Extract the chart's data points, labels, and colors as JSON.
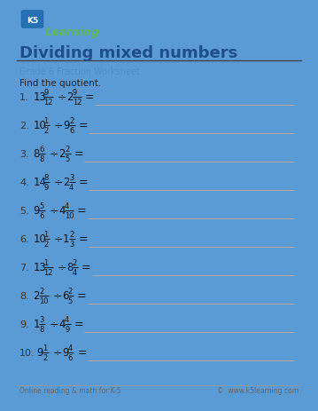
{
  "title": "Dividing mixed numbers",
  "subtitle": "Grade 6 Fraction Worksheet",
  "instruction": "Find the quotient.",
  "bg_color": "#5b9bd5",
  "paper_color": "#ffffff",
  "title_color": "#1f4e8c",
  "subtitle_color": "#4a90c4",
  "text_color": "#222222",
  "line_color": "#bbbbbb",
  "footer_left": "Online reading & math for K-5",
  "footer_right": "©  www.k5learning.com",
  "footer_color": "#666666",
  "problems": [
    {
      "num": "1.",
      "w1": "13",
      "n1": "9",
      "d1": "12",
      "w2": "2",
      "n2": "9",
      "d2": "12"
    },
    {
      "num": "2.",
      "w1": "10",
      "n1": "1",
      "d1": "2",
      "w2": "9",
      "n2": "2",
      "d2": "6"
    },
    {
      "num": "3.",
      "w1": "8",
      "n1": "6",
      "d1": "8",
      "w2": "2",
      "n2": "2",
      "d2": "5"
    },
    {
      "num": "4.",
      "w1": "14",
      "n1": "8",
      "d1": "9",
      "w2": "2",
      "n2": "3",
      "d2": "4"
    },
    {
      "num": "5.",
      "w1": "9",
      "n1": "5",
      "d1": "6",
      "w2": "4",
      "n2": "4",
      "d2": "10"
    },
    {
      "num": "6.",
      "w1": "10",
      "n1": "1",
      "d1": "2",
      "w2": "1",
      "n2": "2",
      "d2": "3"
    },
    {
      "num": "7.",
      "w1": "13",
      "n1": "1",
      "d1": "12",
      "w2": "8",
      "n2": "2",
      "d2": "4"
    },
    {
      "num": "8.",
      "w1": "2",
      "n1": "2",
      "d1": "10",
      "w2": "6",
      "n2": "2",
      "d2": "5"
    },
    {
      "num": "9.",
      "w1": "1",
      "n1": "3",
      "d1": "8",
      "w2": "4",
      "n2": "4",
      "d2": "9"
    },
    {
      "num": "10.",
      "w1": "9",
      "n1": "1",
      "d1": "2",
      "w2": "9",
      "n2": "4",
      "d2": "6"
    }
  ]
}
